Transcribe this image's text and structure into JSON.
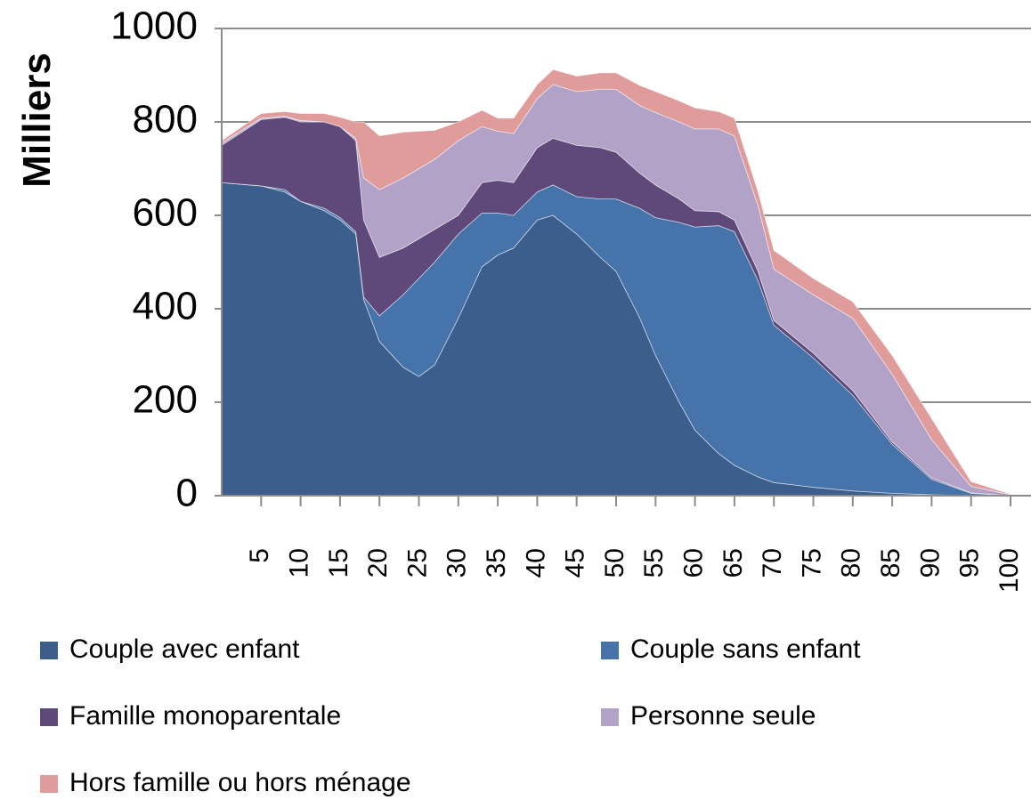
{
  "chart_data": {
    "type": "stacked_area",
    "y_label": "Milliers",
    "x": [
      0,
      5,
      8,
      10,
      13,
      15,
      17,
      18,
      20,
      23,
      25,
      27,
      30,
      33,
      35,
      37,
      40,
      42,
      45,
      48,
      50,
      53,
      55,
      58,
      60,
      63,
      65,
      68,
      70,
      75,
      80,
      85,
      90,
      95,
      100
    ],
    "series": [
      {
        "name": "Couple avec enfant",
        "color": "#3b5e8c",
        "values": [
          670,
          663,
          650,
          630,
          610,
          590,
          560,
          420,
          330,
          275,
          255,
          280,
          380,
          490,
          515,
          530,
          590,
          600,
          560,
          510,
          480,
          380,
          300,
          200,
          140,
          90,
          65,
          40,
          28,
          18,
          10,
          5,
          2,
          0,
          0
        ]
      },
      {
        "name": "Couple sans enfant",
        "color": "#4674aa",
        "values": [
          0,
          0,
          5,
          0,
          5,
          5,
          5,
          5,
          55,
          155,
          210,
          220,
          180,
          115,
          90,
          70,
          60,
          65,
          80,
          125,
          155,
          235,
          295,
          385,
          435,
          488,
          500,
          420,
          337,
          277,
          205,
          105,
          33,
          5,
          0
        ]
      },
      {
        "name": "Famille monoparentale",
        "color": "#5f497a",
        "values": [
          80,
          142,
          155,
          170,
          185,
          195,
          195,
          165,
          125,
          100,
          85,
          70,
          40,
          65,
          70,
          70,
          95,
          100,
          110,
          110,
          100,
          75,
          70,
          50,
          35,
          30,
          25,
          20,
          10,
          10,
          10,
          5,
          3,
          1,
          0
        ]
      },
      {
        "name": "Personne seule",
        "color": "#b3a2c7",
        "values": [
          5,
          3,
          2,
          3,
          0,
          0,
          5,
          90,
          145,
          150,
          150,
          150,
          160,
          120,
          105,
          105,
          105,
          115,
          115,
          125,
          135,
          145,
          155,
          165,
          175,
          177,
          180,
          140,
          110,
          125,
          155,
          145,
          82,
          14,
          2
        ]
      },
      {
        "name": "Hors famille ou hors ménage",
        "color": "#e09b9b",
        "values": [
          5,
          10,
          10,
          15,
          18,
          20,
          35,
          120,
          115,
          98,
          80,
          62,
          40,
          35,
          28,
          33,
          30,
          32,
          33,
          35,
          35,
          43,
          45,
          45,
          45,
          37,
          38,
          30,
          40,
          35,
          35,
          40,
          45,
          10,
          1
        ]
      }
    ],
    "xlim": [
      0,
      100
    ],
    "xticks": [
      5,
      10,
      15,
      20,
      25,
      30,
      35,
      40,
      45,
      50,
      55,
      60,
      65,
      70,
      75,
      80,
      85,
      90,
      95,
      100
    ],
    "ylim": [
      0,
      1000
    ],
    "yticks": [
      0,
      200,
      400,
      600,
      800,
      1000
    ],
    "grid": true
  }
}
